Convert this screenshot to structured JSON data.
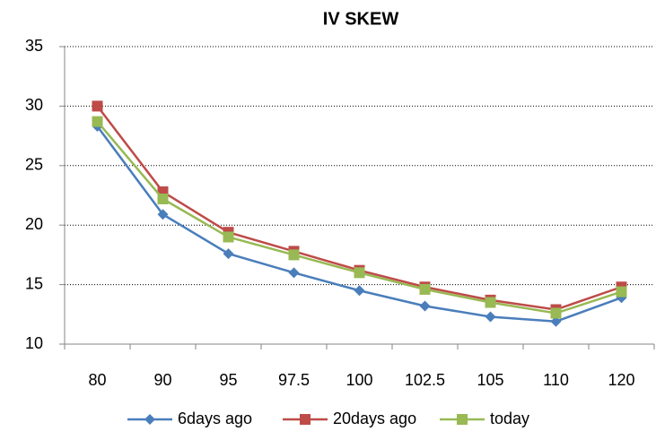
{
  "chart_data": {
    "type": "line",
    "title": "IV SKEW",
    "categories": [
      "80",
      "90",
      "95",
      "97.5",
      "100",
      "102.5",
      "105",
      "110",
      "120"
    ],
    "series": [
      {
        "name": "6days ago",
        "color": "#4a7ebb",
        "marker": "diamond",
        "values": [
          28.3,
          20.9,
          17.6,
          16.0,
          14.5,
          13.2,
          12.3,
          11.9,
          13.9
        ]
      },
      {
        "name": "20days ago",
        "color": "#be4b48",
        "marker": "square",
        "values": [
          30.0,
          22.8,
          19.4,
          17.8,
          16.2,
          14.8,
          13.7,
          12.9,
          14.8
        ]
      },
      {
        "name": "today",
        "color": "#98b954",
        "marker": "square",
        "values": [
          28.7,
          22.2,
          19.0,
          17.5,
          16.0,
          14.6,
          13.5,
          12.6,
          14.4
        ]
      }
    ],
    "ylim": [
      10,
      35
    ],
    "yticks": [
      10,
      15,
      20,
      25,
      30,
      35
    ],
    "grid": true,
    "legend": "bottom"
  }
}
